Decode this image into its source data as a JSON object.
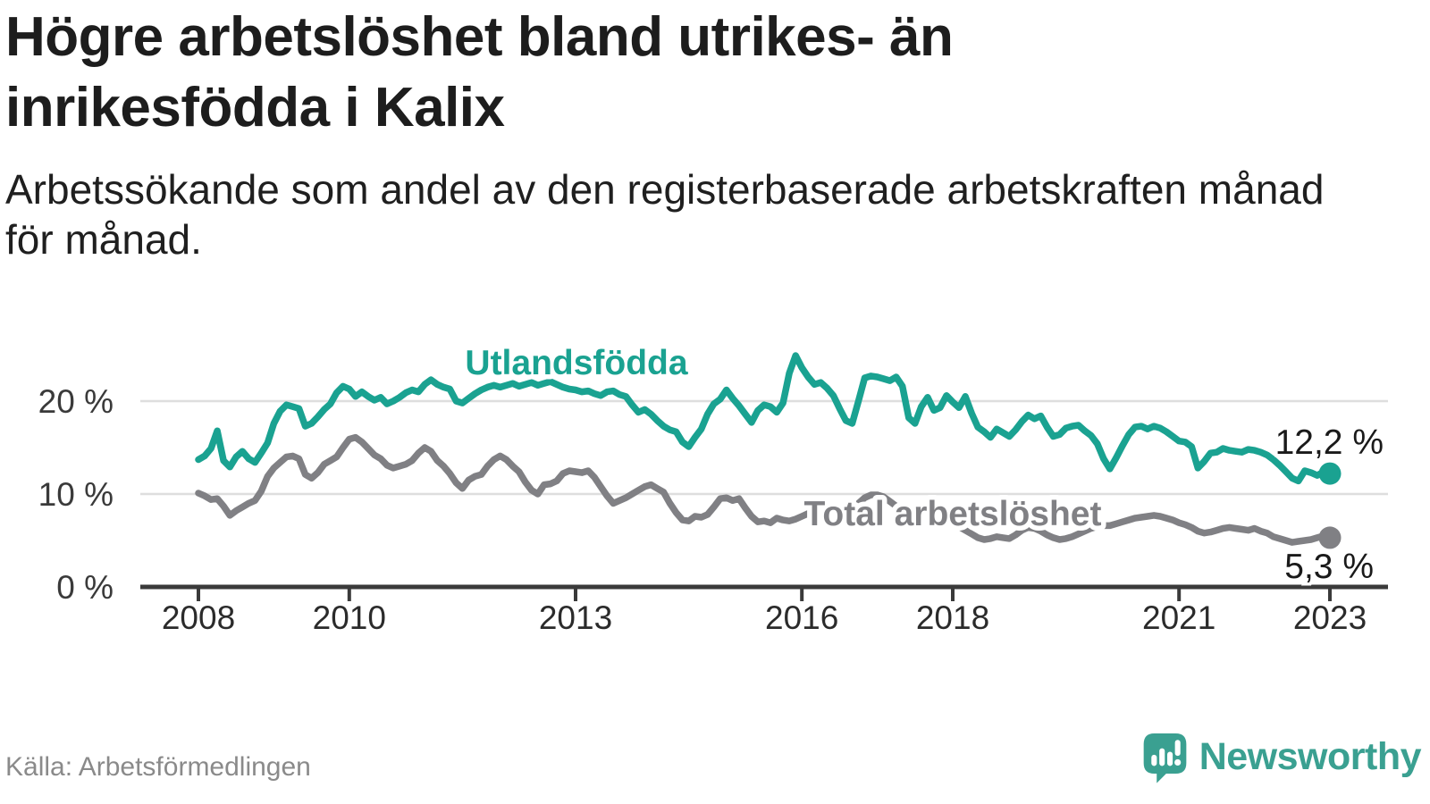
{
  "title": "Högre arbetslöshet bland utrikes- än inrikesfödda i Kalix",
  "title_lines": [
    "Högre arbetslöshet bland utrikes- än",
    "inrikesfödda i Kalix"
  ],
  "subtitle_lines": [
    "Arbetssökande som andel av den registerbaserade arbetskraften månad",
    "för månad."
  ],
  "source": {
    "text": "Källa: Arbetsförmedlingen"
  },
  "brand": {
    "name": "Newsworthy",
    "color": "#3AA091",
    "icon": "newsworthy-speech-bubble-chart-icon"
  },
  "colors": {
    "background": "#ffffff",
    "grid": "#dedede",
    "axis": "#3a3a3a",
    "tick_label": "#2b2b2b",
    "end_label_text": "#1a1a1a",
    "foreign_born_line": "#1AA291",
    "total_line": "#808084"
  },
  "chart_data": {
    "type": "line",
    "title": "Högre arbetslöshet bland utrikes- än inrikesfödda i Kalix",
    "xlabel": "",
    "ylabel": "Arbetssökande som andel av den registerbaserade arbetskraften",
    "x_start_year": 2008,
    "x_step_months": 1,
    "x_ticks": [
      2008,
      2010,
      2013,
      2016,
      2018,
      2021,
      2023
    ],
    "y_ticks": [
      0,
      10,
      20
    ],
    "y_tick_suffix": " %",
    "ylim": [
      0,
      26
    ],
    "grid": true,
    "legend_position": "inline-labels",
    "series": [
      {
        "name": "Utlandsfödda",
        "color": "#1AA291",
        "end_label": "12,2 %",
        "last_value": 12.2,
        "values": [
          13.7,
          14.1,
          14.9,
          16.8,
          13.6,
          12.9,
          14.0,
          14.6,
          13.8,
          13.4,
          14.4,
          15.5,
          17.6,
          18.9,
          19.6,
          19.4,
          19.2,
          17.3,
          17.6,
          18.3,
          19.1,
          19.7,
          20.9,
          21.6,
          21.3,
          20.5,
          21.0,
          20.5,
          20.1,
          20.4,
          19.7,
          20.0,
          20.4,
          20.9,
          21.2,
          21.0,
          21.8,
          22.3,
          21.8,
          21.5,
          21.3,
          20.0,
          19.8,
          20.3,
          20.8,
          21.2,
          21.5,
          21.7,
          21.5,
          21.7,
          21.9,
          21.6,
          21.8,
          22.0,
          21.7,
          21.9,
          22.1,
          21.8,
          21.5,
          21.3,
          21.2,
          21.0,
          21.1,
          20.8,
          20.6,
          21.0,
          21.1,
          20.7,
          20.5,
          19.6,
          18.8,
          19.1,
          18.6,
          17.9,
          17.3,
          16.9,
          16.7,
          15.6,
          15.1,
          16.1,
          17.0,
          18.6,
          19.7,
          20.2,
          21.2,
          20.3,
          19.5,
          18.6,
          17.7,
          19.0,
          19.6,
          19.4,
          18.8,
          19.8,
          23.0,
          24.9,
          23.6,
          22.6,
          21.8,
          22.0,
          21.4,
          20.6,
          19.2,
          17.9,
          17.6,
          20.0,
          22.5,
          22.7,
          22.6,
          22.4,
          22.2,
          22.6,
          21.6,
          18.2,
          17.6,
          19.4,
          20.4,
          19.0,
          19.3,
          20.6,
          19.9,
          19.3,
          20.5,
          18.7,
          17.2,
          16.7,
          16.1,
          17.0,
          16.6,
          16.2,
          16.9,
          17.8,
          18.5,
          18.1,
          18.4,
          17.2,
          16.2,
          16.4,
          17.1,
          17.3,
          17.4,
          16.8,
          16.3,
          15.4,
          13.8,
          12.7,
          13.9,
          15.2,
          16.4,
          17.2,
          17.3,
          17.0,
          17.3,
          17.1,
          16.7,
          16.2,
          15.7,
          15.6,
          15.1,
          12.8,
          13.5,
          14.4,
          14.5,
          14.9,
          14.7,
          14.6,
          14.5,
          14.8,
          14.7,
          14.5,
          14.2,
          13.7,
          13.1,
          12.4,
          11.7,
          11.4,
          12.5,
          12.3,
          12.0,
          12.4,
          12.2
        ]
      },
      {
        "name": "Total arbetslöshet",
        "color": "#808084",
        "end_label": "5,3 %",
        "last_value": 5.3,
        "values": [
          10.1,
          9.8,
          9.4,
          9.5,
          8.7,
          7.7,
          8.2,
          8.6,
          9.0,
          9.3,
          10.3,
          11.9,
          12.8,
          13.4,
          14.0,
          14.1,
          13.8,
          12.1,
          11.7,
          12.3,
          13.2,
          13.6,
          14.0,
          15.0,
          15.9,
          16.1,
          15.6,
          14.9,
          14.2,
          13.8,
          13.1,
          12.8,
          13.0,
          13.2,
          13.6,
          14.4,
          15.0,
          14.6,
          13.6,
          13.0,
          12.2,
          11.2,
          10.6,
          11.5,
          11.9,
          12.1,
          13.0,
          13.7,
          14.1,
          13.7,
          13.0,
          12.4,
          11.3,
          10.4,
          10.0,
          11.0,
          11.1,
          11.4,
          12.2,
          12.5,
          12.4,
          12.3,
          12.5,
          11.8,
          10.8,
          9.8,
          9.0,
          9.3,
          9.6,
          10.0,
          10.4,
          10.8,
          11.0,
          10.6,
          10.2,
          9.0,
          8.0,
          7.2,
          7.1,
          7.6,
          7.5,
          7.8,
          8.6,
          9.5,
          9.6,
          9.3,
          9.5,
          8.5,
          7.6,
          7.0,
          7.1,
          6.9,
          7.4,
          7.2,
          7.1,
          7.3,
          7.6,
          7.9,
          7.7,
          7.5,
          7.2,
          7.0,
          7.3,
          7.8,
          8.4,
          9.0,
          9.6,
          9.9,
          9.9,
          9.7,
          9.2,
          8.7,
          8.1,
          7.6,
          7.3,
          7.2,
          7.3,
          7.2,
          7.0,
          6.9,
          6.8,
          6.5,
          6.1,
          5.7,
          5.3,
          5.1,
          5.2,
          5.4,
          5.3,
          5.2,
          5.6,
          6.1,
          6.4,
          6.3,
          6.0,
          5.6,
          5.3,
          5.1,
          5.2,
          5.4,
          5.7,
          6.0,
          6.3,
          6.5,
          6.6,
          6.6,
          6.8,
          7.0,
          7.2,
          7.4,
          7.5,
          7.6,
          7.7,
          7.6,
          7.4,
          7.2,
          6.9,
          6.7,
          6.4,
          6.0,
          5.8,
          5.9,
          6.1,
          6.3,
          6.4,
          6.3,
          6.2,
          6.1,
          6.3,
          6.0,
          5.8,
          5.4,
          5.2,
          5.0,
          4.8,
          4.9,
          5.0,
          5.1,
          5.3,
          5.5,
          5.3
        ]
      }
    ]
  }
}
